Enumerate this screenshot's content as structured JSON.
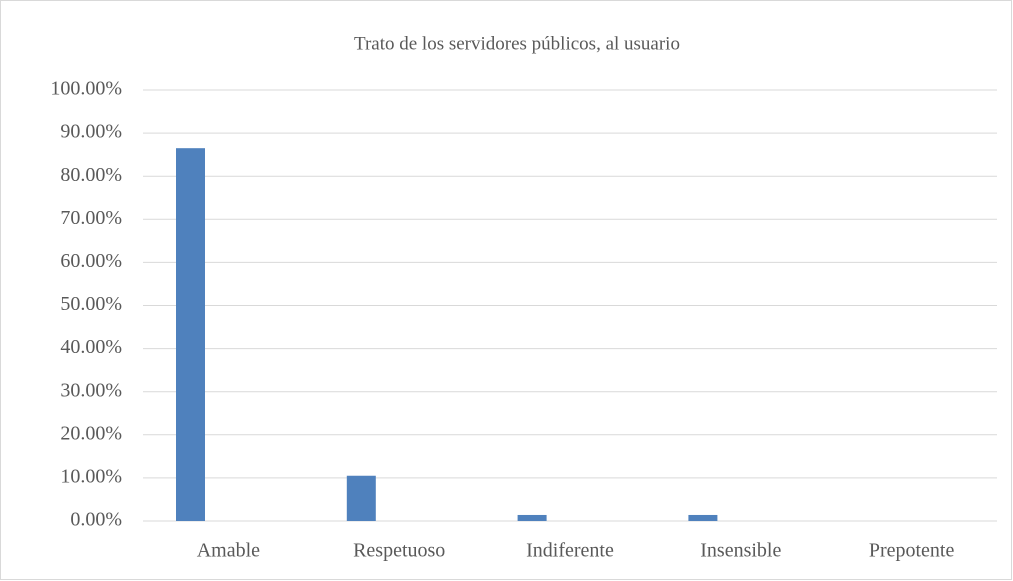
{
  "chart_data": {
    "type": "bar",
    "title": "Trato de los servidores públicos, al usuario",
    "categories": [
      "Amable",
      "Respetuoso",
      "Indiferente",
      "Insensible",
      "Prepotente"
    ],
    "values": [
      86.5,
      10.5,
      1.4,
      1.4,
      0
    ],
    "color": "#4f81bd",
    "ylim": [
      0,
      100
    ],
    "yticks": [
      {
        "value": 0,
        "label": "0.00%"
      },
      {
        "value": 10,
        "label": "10.00%"
      },
      {
        "value": 20,
        "label": "20.00%"
      },
      {
        "value": 30,
        "label": "30.00%"
      },
      {
        "value": 40,
        "label": "40.00%"
      },
      {
        "value": 50,
        "label": "50.00%"
      },
      {
        "value": 60,
        "label": "60.00%"
      },
      {
        "value": 70,
        "label": "70.00%"
      },
      {
        "value": 80,
        "label": "80.00%"
      },
      {
        "value": 90,
        "label": "90.00%"
      },
      {
        "value": 100,
        "label": "100.00%"
      }
    ],
    "grid": true
  }
}
